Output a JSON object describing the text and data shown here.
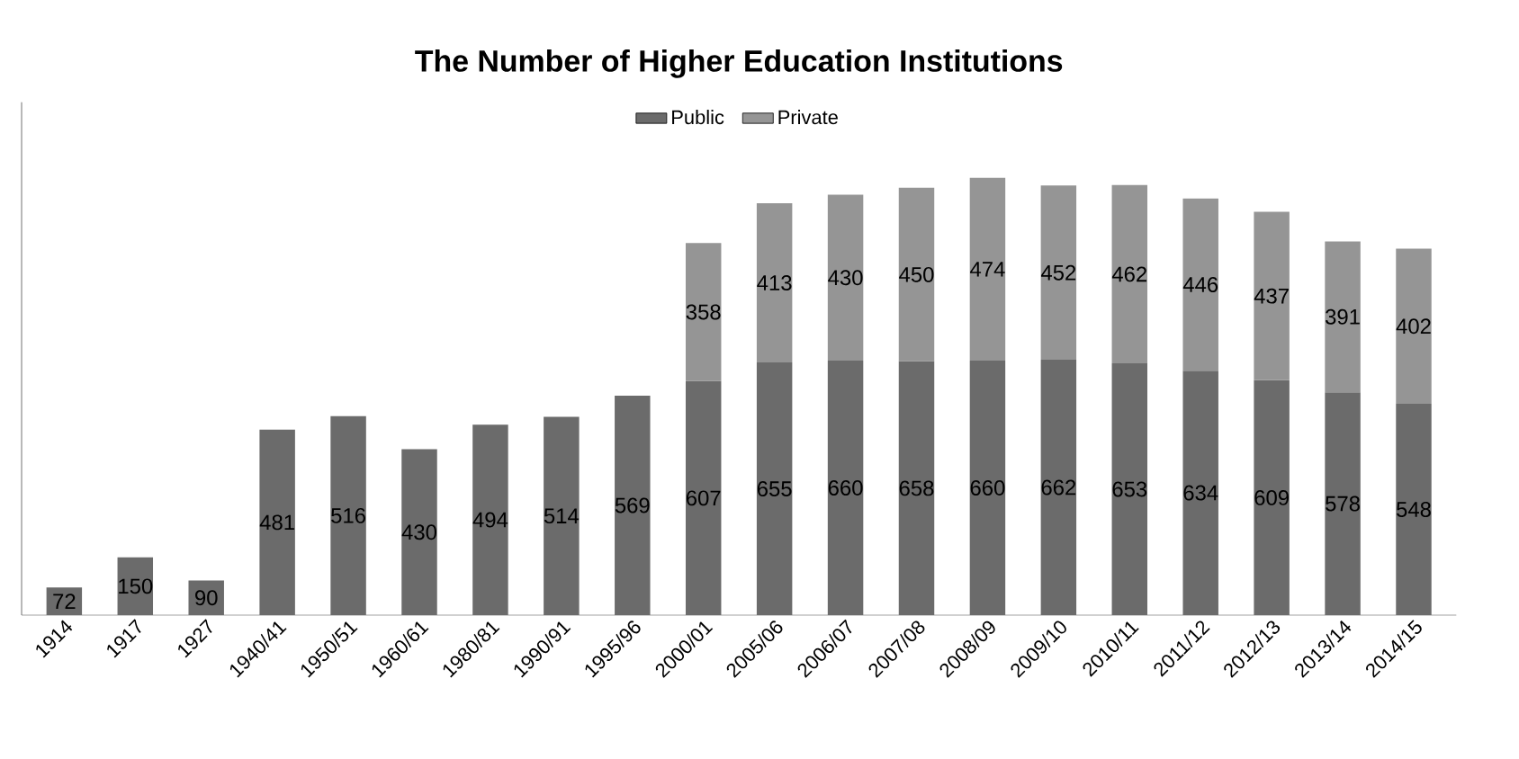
{
  "chart_data": {
    "type": "bar",
    "title": "The Number of Higher Education Institutions",
    "categories": [
      "1914",
      "1917",
      "1927",
      "1940/41",
      "1950/51",
      "1960/61",
      "1980/81",
      "1990/91",
      "1995/96",
      "2000/01",
      "2005/06",
      "2006/07",
      "2007/08",
      "2008/09",
      "2009/10",
      "2010/11",
      "2011/12",
      "2012/13",
      "2013/14",
      "2014/15"
    ],
    "series": [
      {
        "name": "Public",
        "color": "#6b6b6b",
        "values": [
          72,
          150,
          90,
          481,
          516,
          430,
          494,
          514,
          569,
          607,
          655,
          660,
          658,
          660,
          662,
          653,
          634,
          609,
          578,
          548
        ]
      },
      {
        "name": "Private",
        "color": "#959595",
        "values": [
          null,
          null,
          null,
          null,
          null,
          null,
          null,
          null,
          null,
          358,
          413,
          430,
          450,
          474,
          452,
          462,
          446,
          437,
          391,
          402
        ]
      }
    ],
    "stacked": true,
    "data_labels": true,
    "legend": "top",
    "ylim": [
      0,
      1330
    ],
    "tick_labels": "x",
    "grid": false
  }
}
